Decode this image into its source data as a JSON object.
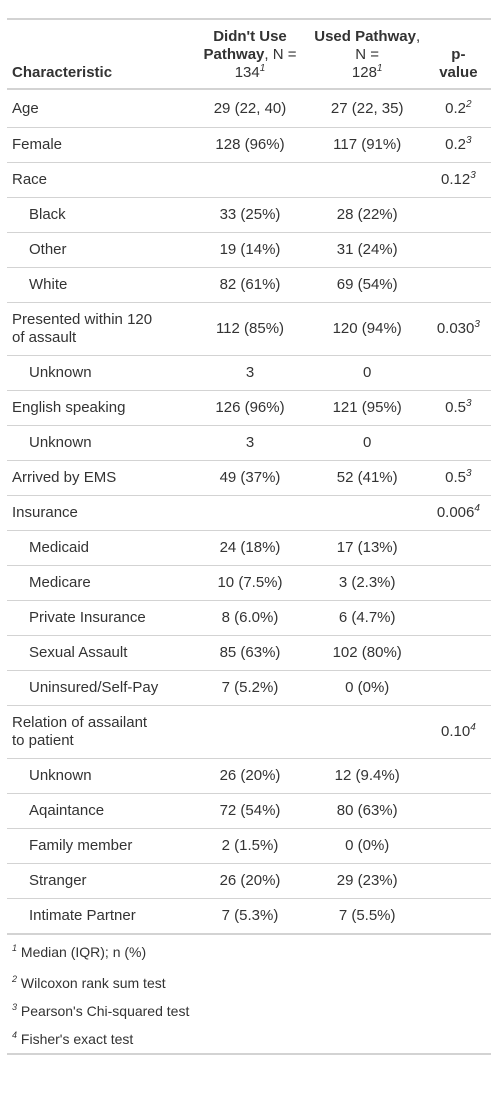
{
  "header": {
    "characteristic": "Characteristic",
    "col1_name": "Didn't Use Pathway",
    "col1_n": ", N = ",
    "col1_count": "134",
    "col1_fn": "1",
    "col2_name": "Used Pathway",
    "col2_n": ", N = ",
    "col2_count": "128",
    "col2_fn": "1",
    "pvalue_top": "p-",
    "pvalue_bottom": "value"
  },
  "rows": [
    {
      "label": "Age",
      "c1": "29 (22, 40)",
      "c2": "27 (22, 35)",
      "p": "0.2",
      "pfn": "2"
    },
    {
      "label": "Female",
      "c1": "128 (96%)",
      "c2": "117 (91%)",
      "p": "0.2",
      "pfn": "3"
    },
    {
      "label": "Race",
      "c1": "",
      "c2": "",
      "p": "0.12",
      "pfn": "3"
    },
    {
      "label": "Black",
      "c1": "33 (25%)",
      "c2": "28 (22%)",
      "p": "",
      "pfn": ""
    },
    {
      "label": "Other",
      "c1": "19 (14%)",
      "c2": "31 (24%)",
      "p": "",
      "pfn": ""
    },
    {
      "label": "White",
      "c1": "82 (61%)",
      "c2": "69 (54%)",
      "p": "",
      "pfn": ""
    },
    {
      "label_line1": "Presented within 120",
      "label_line2": "of assault",
      "c1": "112 (85%)",
      "c2": "120 (94%)",
      "p": "0.030",
      "pfn": "3"
    },
    {
      "label": "Unknown",
      "c1": "3",
      "c2": "0",
      "p": "",
      "pfn": ""
    },
    {
      "label": "English speaking",
      "c1": "126 (96%)",
      "c2": "121 (95%)",
      "p": "0.5",
      "pfn": "3"
    },
    {
      "label": "Unknown",
      "c1": "3",
      "c2": "0",
      "p": "",
      "pfn": ""
    },
    {
      "label": "Arrived by EMS",
      "c1": "49 (37%)",
      "c2": "52 (41%)",
      "p": "0.5",
      "pfn": "3"
    },
    {
      "label": "Insurance",
      "c1": "",
      "c2": "",
      "p": "0.006",
      "pfn": "4"
    },
    {
      "label": "Medicaid",
      "c1": "24 (18%)",
      "c2": "17 (13%)",
      "p": "",
      "pfn": ""
    },
    {
      "label": "Medicare",
      "c1": "10 (7.5%)",
      "c2": "3 (2.3%)",
      "p": "",
      "pfn": ""
    },
    {
      "label": "Private Insurance",
      "c1": "8 (6.0%)",
      "c2": "6 (4.7%)",
      "p": "",
      "pfn": ""
    },
    {
      "label": "Sexual Assault",
      "c1": "85 (63%)",
      "c2": "102 (80%)",
      "p": "",
      "pfn": ""
    },
    {
      "label": "Uninsured/Self-Pay",
      "c1": "7 (5.2%)",
      "c2": "0 (0%)",
      "p": "",
      "pfn": ""
    },
    {
      "label_line1": "Relation of assailant",
      "label_line2": "to patient",
      "c1": "",
      "c2": "",
      "p": "0.10",
      "pfn": "4"
    },
    {
      "label": "Unknown",
      "c1": "26 (20%)",
      "c2": "12 (9.4%)",
      "p": "",
      "pfn": ""
    },
    {
      "label": "Aqaintance",
      "c1": "72 (54%)",
      "c2": "80 (63%)",
      "p": "",
      "pfn": ""
    },
    {
      "label": "Family member",
      "c1": "2 (1.5%)",
      "c2": "0 (0%)",
      "p": "",
      "pfn": ""
    },
    {
      "label": "Stranger",
      "c1": "26 (20%)",
      "c2": "29 (23%)",
      "p": "",
      "pfn": ""
    },
    {
      "label": "Intimate Partner",
      "c1": "7 (5.3%)",
      "c2": "7 (5.5%)",
      "p": "",
      "pfn": ""
    }
  ],
  "footnotes": [
    {
      "mark": "1",
      "text": "Median (IQR); n (%)"
    },
    {
      "mark": "2",
      "text": "Wilcoxon rank sum test"
    },
    {
      "mark": "3",
      "text": "Pearson's Chi-squared test"
    },
    {
      "mark": "4",
      "text": "Fisher's exact test"
    }
  ]
}
